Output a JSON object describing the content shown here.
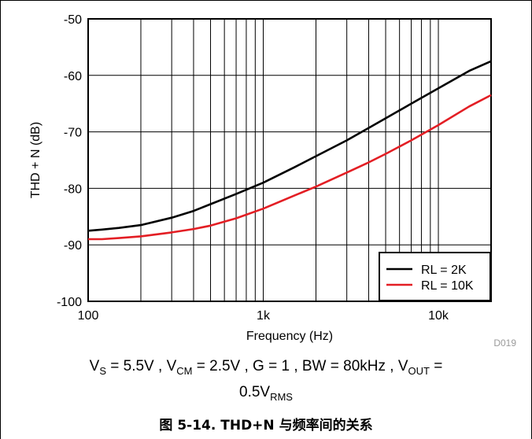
{
  "chart_data": {
    "type": "line",
    "xlabel": "Frequency (Hz)",
    "ylabel": "THD + N (dB)",
    "xscale": "log",
    "xlim": [
      100,
      20000
    ],
    "ylim": [
      -100,
      -50
    ],
    "xticks": [
      {
        "value": 100,
        "label": "100"
      },
      {
        "value": 1000,
        "label": "1k"
      },
      {
        "value": 10000,
        "label": "10k"
      }
    ],
    "yticks": [
      {
        "value": -50,
        "label": "-50"
      },
      {
        "value": -60,
        "label": "-60"
      },
      {
        "value": -70,
        "label": "-70"
      },
      {
        "value": -80,
        "label": "-80"
      },
      {
        "value": -90,
        "label": "-90"
      },
      {
        "value": -100,
        "label": "-100"
      }
    ],
    "grid": true,
    "legend_position": "bottom-right",
    "series": [
      {
        "name": "RL = 2K",
        "color": "#000000",
        "x": [
          100,
          120,
          150,
          200,
          300,
          400,
          500,
          700,
          1000,
          1500,
          2000,
          3000,
          4000,
          5000,
          7000,
          10000,
          15000,
          20000
        ],
        "y": [
          -87.5,
          -87.3,
          -87.0,
          -86.5,
          -85.2,
          -84.0,
          -82.8,
          -81.0,
          -79.0,
          -76.3,
          -74.3,
          -71.5,
          -69.3,
          -67.6,
          -65.0,
          -62.3,
          -59.2,
          -57.5
        ]
      },
      {
        "name": "RL = 10K",
        "color": "#e31e24",
        "x": [
          100,
          120,
          150,
          200,
          300,
          400,
          500,
          700,
          1000,
          1500,
          2000,
          3000,
          4000,
          5000,
          7000,
          10000,
          15000,
          20000
        ],
        "y": [
          -89.0,
          -89.0,
          -88.8,
          -88.5,
          -87.8,
          -87.2,
          -86.6,
          -85.3,
          -83.6,
          -81.3,
          -79.7,
          -77.2,
          -75.4,
          -73.9,
          -71.5,
          -68.8,
          -65.5,
          -63.5
        ]
      }
    ],
    "source_tag": "D019"
  },
  "conditions": {
    "vs_main": "V",
    "vs_sub": "S",
    "vs_val": " = 5.5V , ",
    "vcm_main": "V",
    "vcm_sub": "CM",
    "vcm_val": " = 2.5V , G = 1 , BW = 80kHz , ",
    "vout_main": "V",
    "vout_sub": "OUT",
    "vout_val": " =",
    "line2_val": "0.5V",
    "line2_sub": "RMS"
  },
  "caption": "图 5-14. THD+N 与频率间的关系"
}
